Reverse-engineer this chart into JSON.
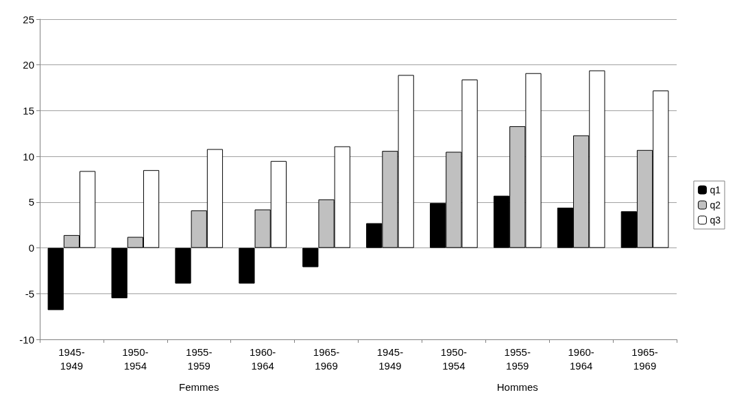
{
  "chart_data": {
    "type": "bar",
    "categories": [
      "1945-1949",
      "1950-1954",
      "1955-1959",
      "1960-1964",
      "1965-1969",
      "1945-1949",
      "1950-1954",
      "1955-1959",
      "1960-1964",
      "1965-1969"
    ],
    "series": [
      {
        "name": "q1",
        "color": "#000000",
        "values": [
          -6.8,
          -5.5,
          -3.9,
          -3.9,
          -2.1,
          2.7,
          4.9,
          5.7,
          4.4,
          4.0
        ]
      },
      {
        "name": "q2",
        "color": "#c0c0c0",
        "values": [
          1.4,
          1.2,
          4.1,
          4.2,
          5.3,
          10.6,
          10.5,
          13.3,
          12.3,
          10.7
        ]
      },
      {
        "name": "q3",
        "color": "#ffffff",
        "values": [
          8.4,
          8.5,
          10.8,
          9.5,
          11.1,
          18.9,
          18.4,
          19.1,
          19.4,
          17.2
        ]
      }
    ],
    "annotations": [
      "Femmes",
      "Hommes"
    ],
    "ylim": [
      -10,
      25
    ],
    "yticks": [
      -10,
      -5,
      0,
      5,
      10,
      15,
      20,
      25
    ],
    "grid": "y",
    "legend": "right"
  }
}
